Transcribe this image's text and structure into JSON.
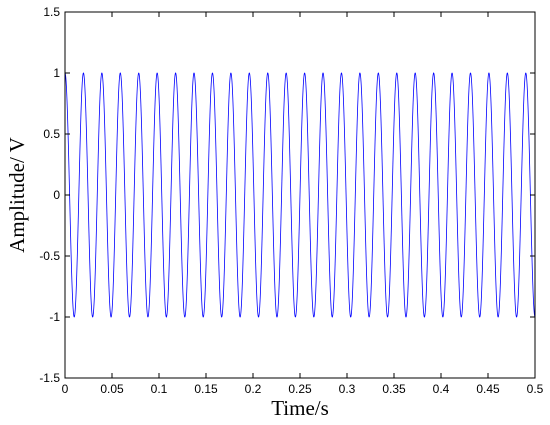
{
  "chart_data": {
    "type": "line",
    "title": "",
    "xlabel": "Time/s",
    "ylabel": "Amplitude/ V",
    "xlim": [
      0,
      0.5
    ],
    "ylim": [
      -1.5,
      1.5
    ],
    "x_ticks": [
      "0",
      "0.05",
      "0.1",
      "0.15",
      "0.2",
      "0.25",
      "0.3",
      "0.35",
      "0.4",
      "0.45",
      "0.5"
    ],
    "y_ticks": [
      "1.5",
      "1",
      "0.5",
      "0",
      "-0.5",
      "-1",
      "-1.5"
    ],
    "grid": false,
    "series": [
      {
        "color": "#0000ff",
        "signal": "sine",
        "amplitude": 1,
        "frequency_hz": 51,
        "phase_deg": 90,
        "x_start": 0,
        "x_end": 0.5
      }
    ]
  }
}
